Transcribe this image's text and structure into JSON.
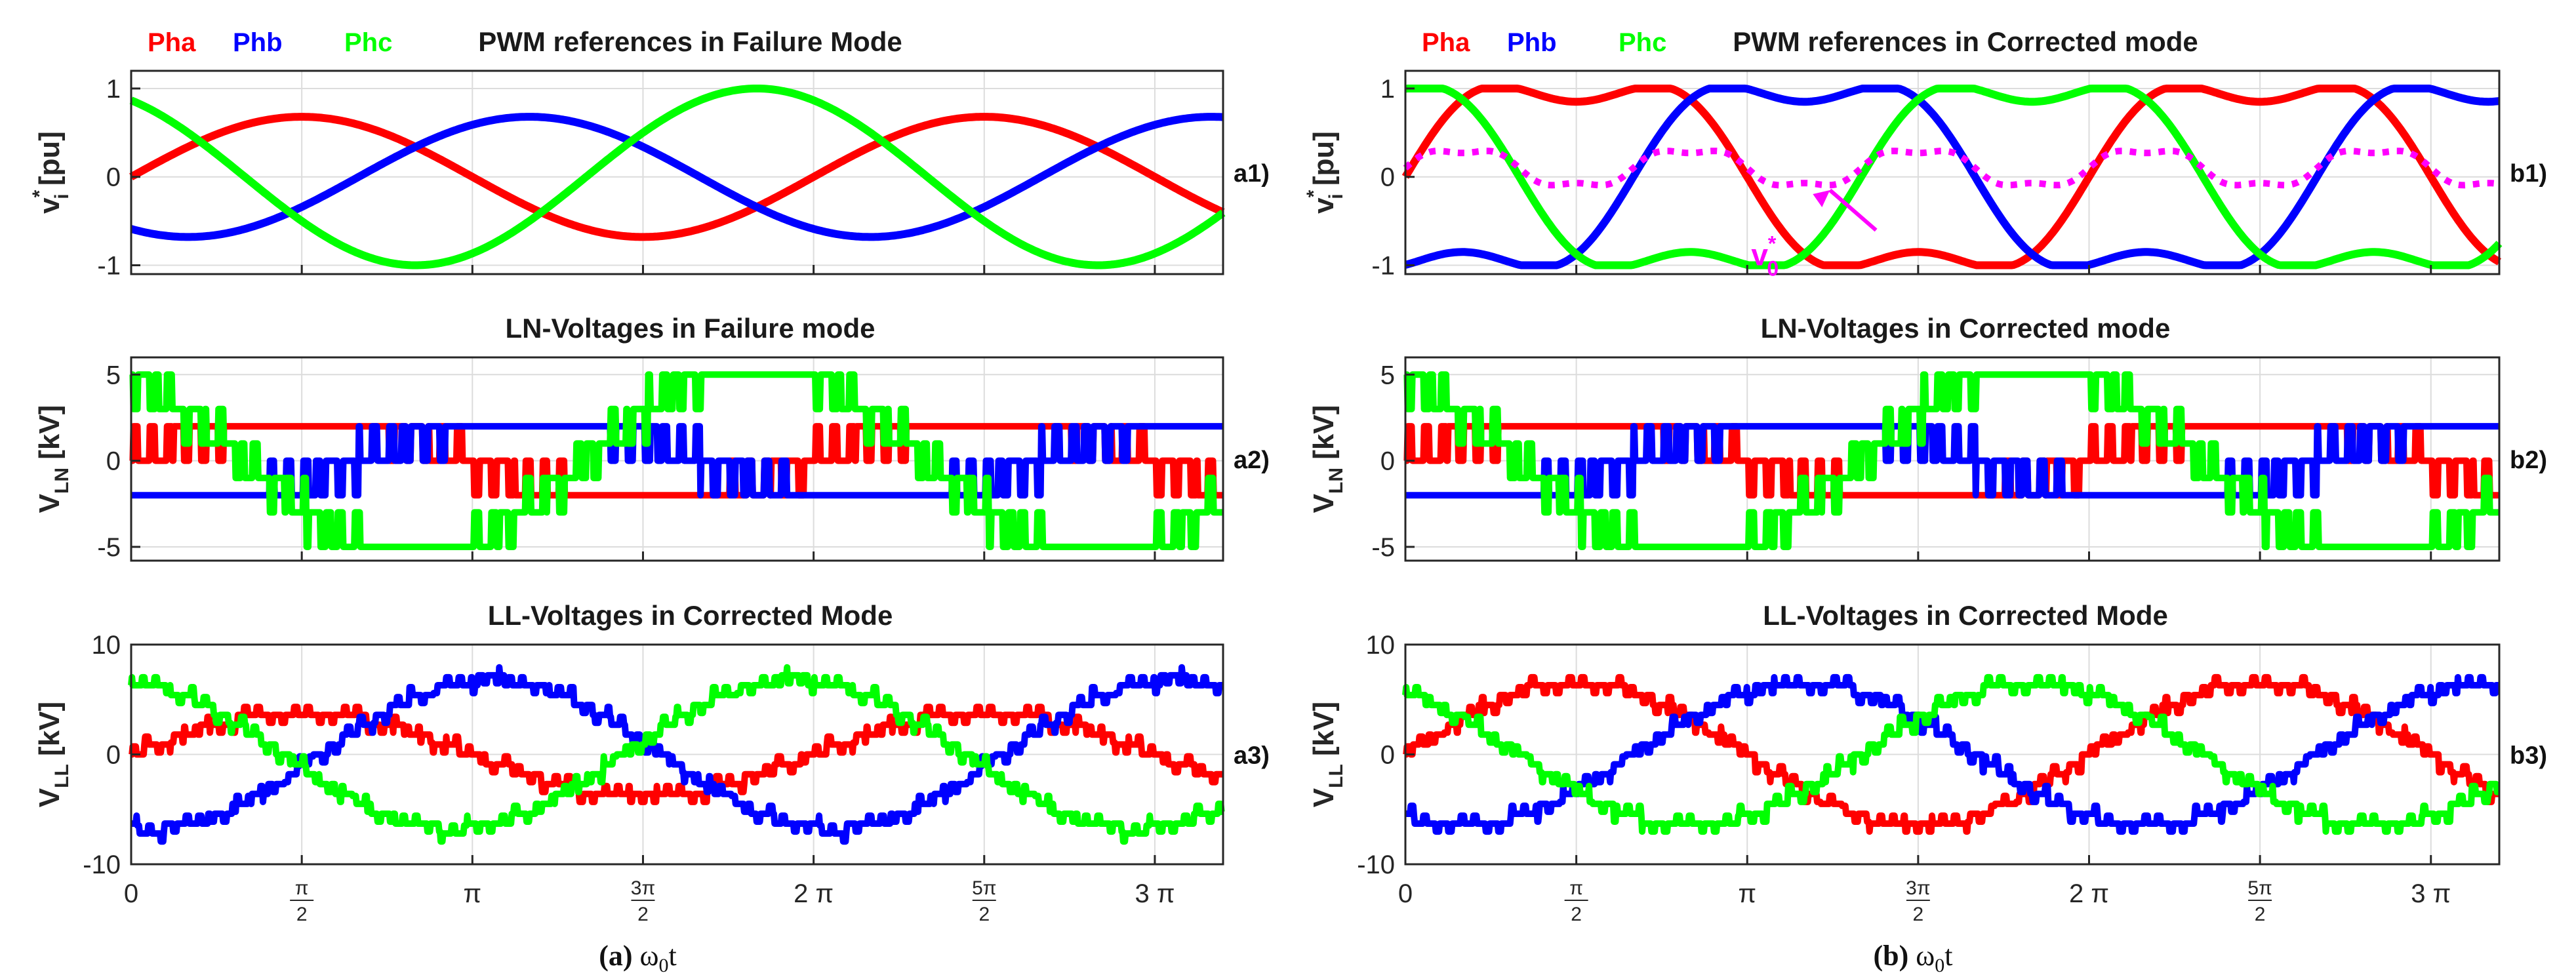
{
  "colors": {
    "pha": "#ff0000",
    "phb": "#0000ff",
    "phc": "#00ff00",
    "v0": "#ff00ff",
    "grid": "#dcdcdc",
    "axis": "#262626"
  },
  "x_tick_labels": [
    {
      "text": "0"
    },
    {
      "num": "π",
      "den": "2"
    },
    {
      "text": "π"
    },
    {
      "num": "3π",
      "den": "2"
    },
    {
      "text": "2 π"
    },
    {
      "num": "5π",
      "den": "2"
    },
    {
      "text": "3 π"
    }
  ],
  "captions": {
    "left": {
      "tag": "(a)",
      "var": "ω",
      "sub": "0",
      "suffix": "t"
    },
    "right": {
      "tag": "(b)",
      "var": "ω",
      "sub": "0",
      "suffix": "t"
    }
  },
  "v0_label": {
    "base": "v",
    "sup": "*",
    "sub": "0"
  },
  "chart_data": [
    {
      "id": "a1",
      "type": "line",
      "title": "PWM references in Failure Mode",
      "ylabel": {
        "base": "v",
        "sup": "*",
        "sub": "i",
        "suffix": " [pu]"
      },
      "panel_label": "a1)",
      "legend": [
        "Pha",
        "Phb",
        "Phc"
      ],
      "x_range": [
        "0",
        "3.2π"
      ],
      "ylim": [
        -1.1,
        1.2
      ],
      "yticks": [
        "-1",
        "0",
        "1"
      ],
      "ytick_values": [
        -1,
        0,
        1
      ],
      "grid": true,
      "series": [
        {
          "name": "Pha",
          "shape": "sine",
          "amplitude": 0.68,
          "phase_deg": 0
        },
        {
          "name": "Phb",
          "shape": "sine",
          "amplitude": 0.68,
          "phase_deg": -120
        },
        {
          "name": "Phc",
          "shape": "sine",
          "amplitude": 1.0,
          "phase_deg": 120
        }
      ]
    },
    {
      "id": "b1",
      "type": "line",
      "title": "PWM references in Corrected mode",
      "ylabel": {
        "base": "v",
        "sup": "*",
        "sub": "i",
        "suffix": " [pu]"
      },
      "panel_label": "b1)",
      "legend": [
        "Pha",
        "Phb",
        "Phc"
      ],
      "x_range": [
        "0",
        "3.2π"
      ],
      "ylim": [
        -1.1,
        1.2
      ],
      "yticks": [
        "-1",
        "0",
        "1"
      ],
      "ytick_values": [
        -1,
        0,
        1
      ],
      "grid": true,
      "series": [
        {
          "name": "Pha",
          "shape": "sine with injected zero-sequence",
          "amplitude": 1.0,
          "phase_deg": 0
        },
        {
          "name": "Phb",
          "shape": "sine with injected zero-sequence",
          "amplitude": 1.0,
          "phase_deg": -120
        },
        {
          "name": "Phc",
          "shape": "sine with injected zero-sequence",
          "amplitude": 1.0,
          "phase_deg": 120
        },
        {
          "name": "v0*",
          "shape": "zero-sequence (3rd-harmonic-like), dotted",
          "mean": 0.1,
          "amplitude": 0.3
        }
      ]
    },
    {
      "id": "a2",
      "type": "line",
      "title": "LN-Voltages in Failure mode",
      "ylabel": {
        "base": "V",
        "sub": "LN",
        "suffix": " [kV]"
      },
      "panel_label": "a2)",
      "x_range": [
        "0",
        "3.2π"
      ],
      "ylim": [
        -5.8,
        6
      ],
      "yticks": [
        "-5",
        "0",
        "5"
      ],
      "ytick_values": [
        -5,
        0,
        5
      ],
      "grid": true,
      "series": [
        {
          "name": "Pha",
          "shape": "staircase PWM",
          "levels_kV": [
            -2.0,
            0,
            2.0
          ],
          "phase_deg": 0
        },
        {
          "name": "Phb",
          "shape": "staircase PWM",
          "levels_kV": [
            -2.0,
            0,
            2.0
          ],
          "phase_deg": -120
        },
        {
          "name": "Phc",
          "shape": "staircase PWM",
          "levels_kV": [
            -5.0,
            -3.0,
            -1.0,
            1.0,
            3.0,
            5.0
          ],
          "phase_deg": 120
        }
      ]
    },
    {
      "id": "b2",
      "type": "line",
      "title": "LN-Voltages in Corrected mode",
      "ylabel": {
        "base": "V",
        "sub": "LN",
        "suffix": " [kV]"
      },
      "panel_label": "b2)",
      "x_range": [
        "0",
        "3.2π"
      ],
      "ylim": [
        -5.8,
        6
      ],
      "yticks": [
        "-5",
        "0",
        "5"
      ],
      "ytick_values": [
        -5,
        0,
        5
      ],
      "grid": true,
      "series": [
        {
          "name": "Pha",
          "shape": "staircase PWM",
          "levels_kV": [
            -2.0,
            0,
            2.0
          ],
          "phase_deg": 0
        },
        {
          "name": "Phb",
          "shape": "staircase PWM",
          "levels_kV": [
            -2.0,
            0,
            2.0
          ],
          "phase_deg": -120
        },
        {
          "name": "Phc",
          "shape": "staircase PWM",
          "levels_kV": [
            -5.0,
            -3.0,
            -1.0,
            1.0,
            3.0,
            5.0
          ],
          "phase_deg": 120
        }
      ]
    },
    {
      "id": "a3",
      "type": "line",
      "title": "LL-Voltages in Corrected Mode",
      "ylabel": {
        "base": "V",
        "sub": "LL",
        "suffix": " [kV]"
      },
      "panel_label": "a3)",
      "x_range": [
        "0",
        "3.2π"
      ],
      "ylim": [
        -10,
        10
      ],
      "yticks": [
        "-10",
        "0",
        "10"
      ],
      "ytick_values": [
        -10,
        0,
        10
      ],
      "grid": true,
      "series": [
        {
          "name": "Pha",
          "shape": "multilevel PWM sine",
          "amplitude_kV": 3.8,
          "offset_kV": 0,
          "phase_deg": 0
        },
        {
          "name": "Phb",
          "shape": "multilevel PWM sine",
          "amplitude_kV": 6.8,
          "offset_kV": 0,
          "phase_deg": -100
        },
        {
          "name": "Phc",
          "shape": "multilevel PWM sine",
          "amplitude_kV": 6.8,
          "offset_kV": 0,
          "phase_deg": 100
        }
      ]
    },
    {
      "id": "b3",
      "type": "line",
      "title": "LL-Voltages in Corrected Mode",
      "ylabel": {
        "base": "V",
        "sub": "LL",
        "suffix": " [kV]"
      },
      "panel_label": "b3)",
      "x_range": [
        "0",
        "3.2π"
      ],
      "ylim": [
        -10,
        10
      ],
      "yticks": [
        "-10",
        "0",
        "10"
      ],
      "ytick_values": [
        -10,
        0,
        10
      ],
      "grid": true,
      "series": [
        {
          "name": "Pha",
          "shape": "multilevel PWM sine",
          "amplitude_kV": 6.5,
          "offset_kV": 0,
          "phase_deg": 0
        },
        {
          "name": "Phb",
          "shape": "multilevel PWM sine",
          "amplitude_kV": 6.5,
          "offset_kV": 0,
          "phase_deg": -120
        },
        {
          "name": "Phc",
          "shape": "multilevel PWM sine",
          "amplitude_kV": 6.5,
          "offset_kV": 0,
          "phase_deg": 120
        }
      ]
    }
  ]
}
